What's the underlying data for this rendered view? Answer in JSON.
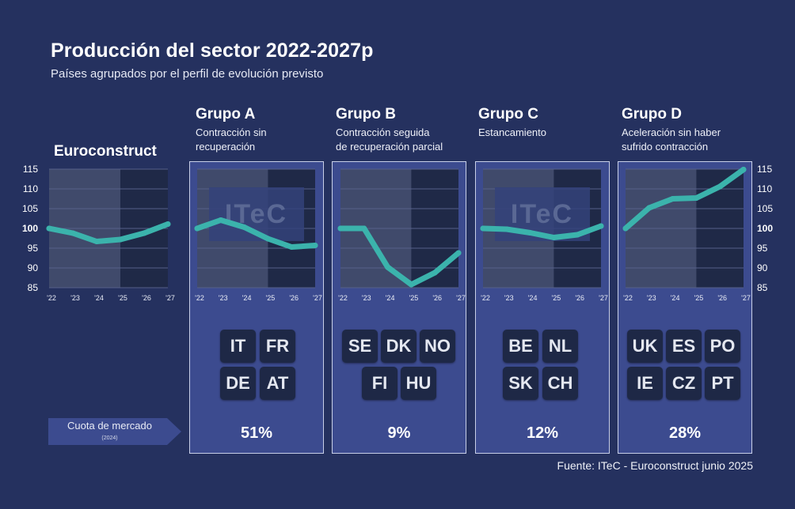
{
  "title": "Producción del sector 2022-2027p",
  "subtitle": "Países agrupados por el perfil de evolución previsto",
  "quota": {
    "label": "Cuota de mercado",
    "year": "(2024)"
  },
  "source": "Fuente: ITeC - Euroconstruct junio 2025",
  "watermark": "ITeC",
  "euroconstruct": {
    "label": "Euroconstruct"
  },
  "groups": [
    {
      "title": "Grupo A",
      "desc1": "Contracción sin",
      "desc2": "recuperación",
      "share": "51%",
      "countries": [
        "IT",
        "FR",
        "DE",
        "AT"
      ]
    },
    {
      "title": "Grupo B",
      "desc1": "Contracción seguida",
      "desc2": "de recuperación parcial",
      "share": "9%",
      "countries": [
        "SE",
        "DK",
        "NO",
        "FI",
        "HU"
      ]
    },
    {
      "title": "Grupo C",
      "desc1": "Estancamiento",
      "desc2": "",
      "share": "12%",
      "countries": [
        "BE",
        "NL",
        "SK",
        "CH"
      ]
    },
    {
      "title": "Grupo D",
      "desc1": "Aceleración sin haber",
      "desc2": "sufrido contracción",
      "share": "28%",
      "countries": [
        "UK",
        "ES",
        "PO",
        "IE",
        "CZ",
        "PT"
      ]
    }
  ],
  "colors": {
    "background": "#25315f",
    "panel": "#3c4b8f",
    "line": "#3bb3ac",
    "forecast_shade": "#1f2947",
    "plot": "#404a6b"
  },
  "chart_data": [
    {
      "type": "line",
      "name": "Euroconstruct",
      "x": [
        "'22",
        "'23",
        "'24",
        "'25",
        "'26",
        "'27"
      ],
      "values": [
        100,
        98.8,
        96.7,
        97.2,
        98.8,
        101.1
      ],
      "ylim": [
        85,
        115
      ],
      "yticks": [
        115,
        110,
        105,
        100,
        95,
        90,
        85
      ],
      "forecast_from": "'25"
    },
    {
      "type": "line",
      "name": "Grupo A",
      "x": [
        "'22",
        "'23",
        "'24",
        "'25",
        "'26",
        "'27"
      ],
      "values": [
        100,
        102.1,
        100.3,
        97.4,
        95.3,
        95.7
      ],
      "ylim": [
        85,
        115
      ],
      "forecast_from": "'25"
    },
    {
      "type": "line",
      "name": "Grupo B",
      "x": [
        "'22",
        "'23",
        "'24",
        "'25",
        "'26",
        "'27"
      ],
      "values": [
        100,
        100,
        90.2,
        85.8,
        88.8,
        93.8
      ],
      "ylim": [
        85,
        115
      ],
      "forecast_from": "'25"
    },
    {
      "type": "line",
      "name": "Grupo C",
      "x": [
        "'22",
        "'23",
        "'24",
        "'25",
        "'26",
        "'27"
      ],
      "values": [
        100,
        99.8,
        98.9,
        97.7,
        98.4,
        100.6
      ],
      "ylim": [
        85,
        115
      ],
      "forecast_from": "'25"
    },
    {
      "type": "line",
      "name": "Grupo D",
      "x": [
        "'22",
        "'23",
        "'24",
        "'25",
        "'26",
        "'27"
      ],
      "values": [
        100,
        105.2,
        107.5,
        107.7,
        110.6,
        114.9
      ],
      "ylim": [
        85,
        115
      ],
      "yticks": [
        115,
        110,
        105,
        100,
        95,
        90,
        85
      ],
      "forecast_from": "'25"
    }
  ]
}
